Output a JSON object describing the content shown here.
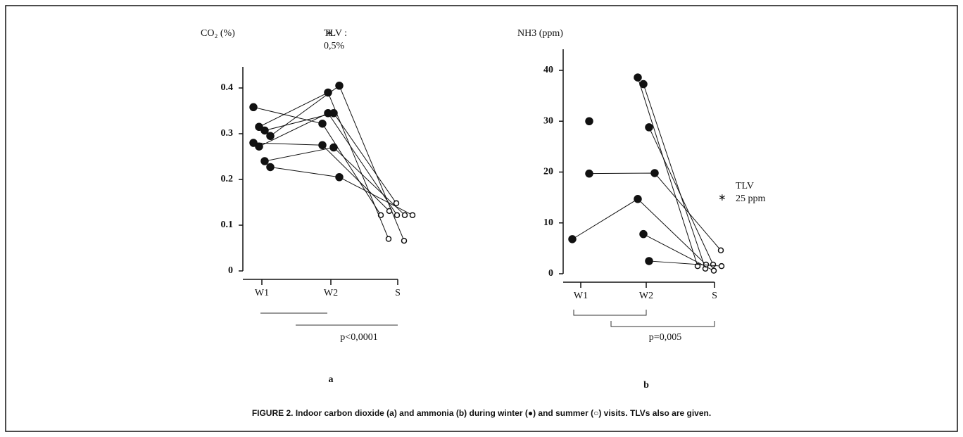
{
  "chart_data": [
    {
      "type": "line",
      "ylabel": "CO₂ (%)",
      "annotation": [
        "TLV :",
        "0,5%"
      ],
      "p_label": "p<0,0001",
      "panel_label": "a",
      "categories": [
        "W1",
        "W2",
        "S"
      ],
      "ylim": [
        0,
        0.4
      ],
      "yticks": [
        0,
        0.1,
        0.2,
        0.3,
        0.4
      ],
      "color": "#111111",
      "series": [
        {
          "values": [
            0.358,
            0.322,
            0.122
          ]
        },
        {
          "values": [
            0.315,
            0.39,
            0.07
          ]
        },
        {
          "values": [
            0.307,
            0.345,
            0.148
          ]
        },
        {
          "values": [
            0.295,
            0.405,
            0.066
          ]
        },
        {
          "values": [
            0.28,
            0.275,
            0.131
          ]
        },
        {
          "values": [
            0.272,
            0.345,
            0.122
          ]
        },
        {
          "values": [
            0.24,
            0.27,
            0.122
          ]
        },
        {
          "values": [
            0.227,
            0.205,
            0.122
          ]
        }
      ]
    },
    {
      "type": "line",
      "ylabel": "NH3  (ppm)",
      "annotation": [
        "TLV",
        "25 ppm"
      ],
      "p_label": "p=0,005",
      "panel_label": "b",
      "categories": [
        "W1",
        "W2",
        "S"
      ],
      "ylim": [
        0,
        40
      ],
      "yticks": [
        0,
        10,
        20,
        30,
        40
      ],
      "color": "#111111",
      "series": [
        {
          "values": [
            null,
            38.6,
            1.5
          ]
        },
        {
          "values": [
            null,
            37.3,
            1.0
          ]
        },
        {
          "values": [
            null,
            28.8,
            1.8
          ]
        },
        {
          "values": [
            19.7,
            19.8,
            4.6
          ]
        },
        {
          "values": [
            6.8,
            14.7,
            1.8
          ]
        },
        {
          "values": [
            null,
            7.8,
            0.6
          ]
        },
        {
          "values": [
            null,
            2.5,
            1.5
          ]
        },
        {
          "values": [
            30,
            null,
            null
          ]
        }
      ]
    }
  ],
  "caption": "FIGURE 2.  Indoor carbon dioxide (a) and ammonia (b) during winter (●) and summer (○) visits. TLVs also are given."
}
